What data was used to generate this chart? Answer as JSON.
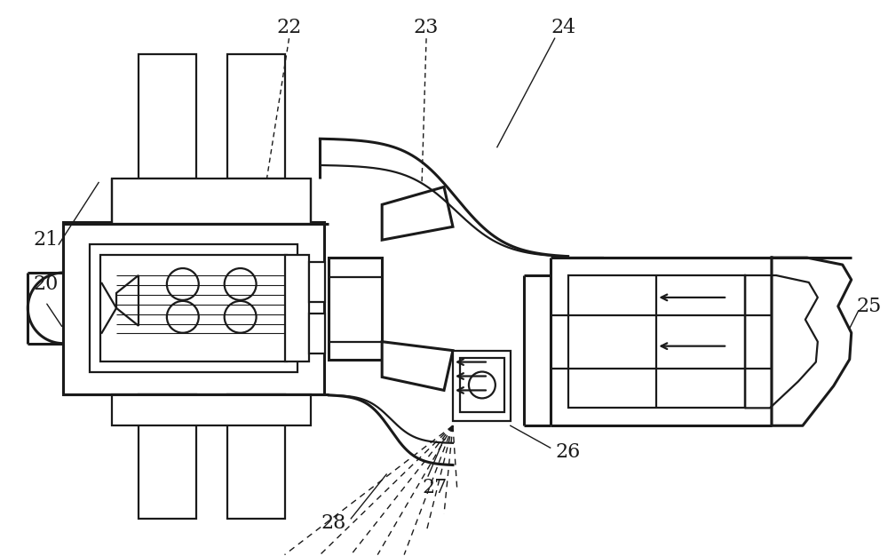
{
  "bg_color": "#ffffff",
  "line_color": "#1a1a1a",
  "lw": 1.6,
  "tlw": 2.2,
  "ann_fs": 16,
  "figsize": [
    10.0,
    6.26
  ],
  "dpi": 100
}
